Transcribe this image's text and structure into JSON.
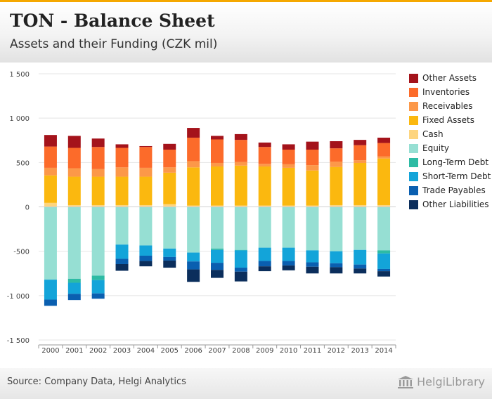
{
  "header": {
    "title": "TON - Balance Sheet",
    "subtitle": "Assets and their Funding (CZK mil)"
  },
  "footer": {
    "source": "Source: Company Data, Helgi Analytics",
    "logo_text": "HelgiLibrary"
  },
  "chart_data": {
    "type": "bar",
    "stacked": true,
    "title": "TON - Balance Sheet",
    "subtitle": "Assets and their Funding (CZK mil)",
    "xlabel": "",
    "ylabel": "",
    "ylim": [
      -1500,
      1500
    ],
    "yticks": [
      1500,
      1000,
      500,
      0,
      -500,
      -1000,
      -1500
    ],
    "ytick_labels": [
      "1 500",
      "1 000",
      "500",
      "0",
      "-500",
      "-1 000",
      "-1 500"
    ],
    "grid": true,
    "legend_position": "right",
    "categories": [
      "2000",
      "2001",
      "2002",
      "2003",
      "2004",
      "2005",
      "2006",
      "2007",
      "2008",
      "2009",
      "2010",
      "2011",
      "2012",
      "2013",
      "2014"
    ],
    "series": [
      {
        "name": "Cash",
        "side": "assets",
        "color": "#fdd57f",
        "values": [
          45,
          20,
          20,
          20,
          20,
          30,
          15,
          15,
          15,
          15,
          15,
          15,
          20,
          20,
          20
        ]
      },
      {
        "name": "Fixed Assets",
        "side": "assets",
        "color": "#fbb80f",
        "values": [
          310,
          320,
          320,
          320,
          320,
          355,
          430,
          440,
          450,
          440,
          425,
          395,
          430,
          475,
          525
        ]
      },
      {
        "name": "Receivables",
        "side": "assets",
        "color": "#fc9849",
        "values": [
          85,
          95,
          85,
          105,
          100,
          60,
          70,
          40,
          40,
          30,
          40,
          60,
          60,
          30,
          25
        ]
      },
      {
        "name": "Inventories",
        "side": "assets",
        "color": "#fc6b2a",
        "values": [
          240,
          230,
          250,
          220,
          235,
          200,
          265,
          265,
          250,
          190,
          165,
          175,
          150,
          170,
          150
        ]
      },
      {
        "name": "Other Assets",
        "side": "assets",
        "color": "#a4131b",
        "values": [
          130,
          135,
          95,
          40,
          10,
          65,
          110,
          40,
          65,
          50,
          60,
          90,
          80,
          60,
          60
        ]
      },
      {
        "name": "Equity",
        "side": "funding",
        "color": "#96dfd3",
        "values": [
          820,
          810,
          775,
          425,
          435,
          470,
          515,
          470,
          485,
          460,
          460,
          490,
          500,
          485,
          490
        ]
      },
      {
        "name": "Long-Term Debt",
        "side": "funding",
        "color": "#2dbba4",
        "values": [
          0,
          45,
          50,
          0,
          0,
          0,
          0,
          15,
          5,
          0,
          0,
          0,
          0,
          0,
          35
        ]
      },
      {
        "name": "Short-Term Debt",
        "side": "funding",
        "color": "#13a4d9",
        "values": [
          225,
          125,
          150,
          160,
          115,
          95,
          100,
          145,
          195,
          150,
          150,
          135,
          135,
          165,
          175
        ]
      },
      {
        "name": "Trade Payables",
        "side": "funding",
        "color": "#0a5fb0",
        "values": [
          70,
          70,
          60,
          60,
          60,
          40,
          90,
          80,
          45,
          60,
          50,
          50,
          45,
          45,
          25
        ]
      },
      {
        "name": "Other Liabilities",
        "side": "funding",
        "color": "#0b2e5c",
        "values": [
          0,
          0,
          0,
          75,
          60,
          80,
          140,
          90,
          110,
          55,
          55,
          75,
          70,
          55,
          60
        ]
      }
    ],
    "legend_order": [
      "Other Assets",
      "Inventories",
      "Receivables",
      "Fixed Assets",
      "Cash",
      "Equity",
      "Long-Term Debt",
      "Short-Term Debt",
      "Trade Payables",
      "Other Liabilities"
    ]
  }
}
